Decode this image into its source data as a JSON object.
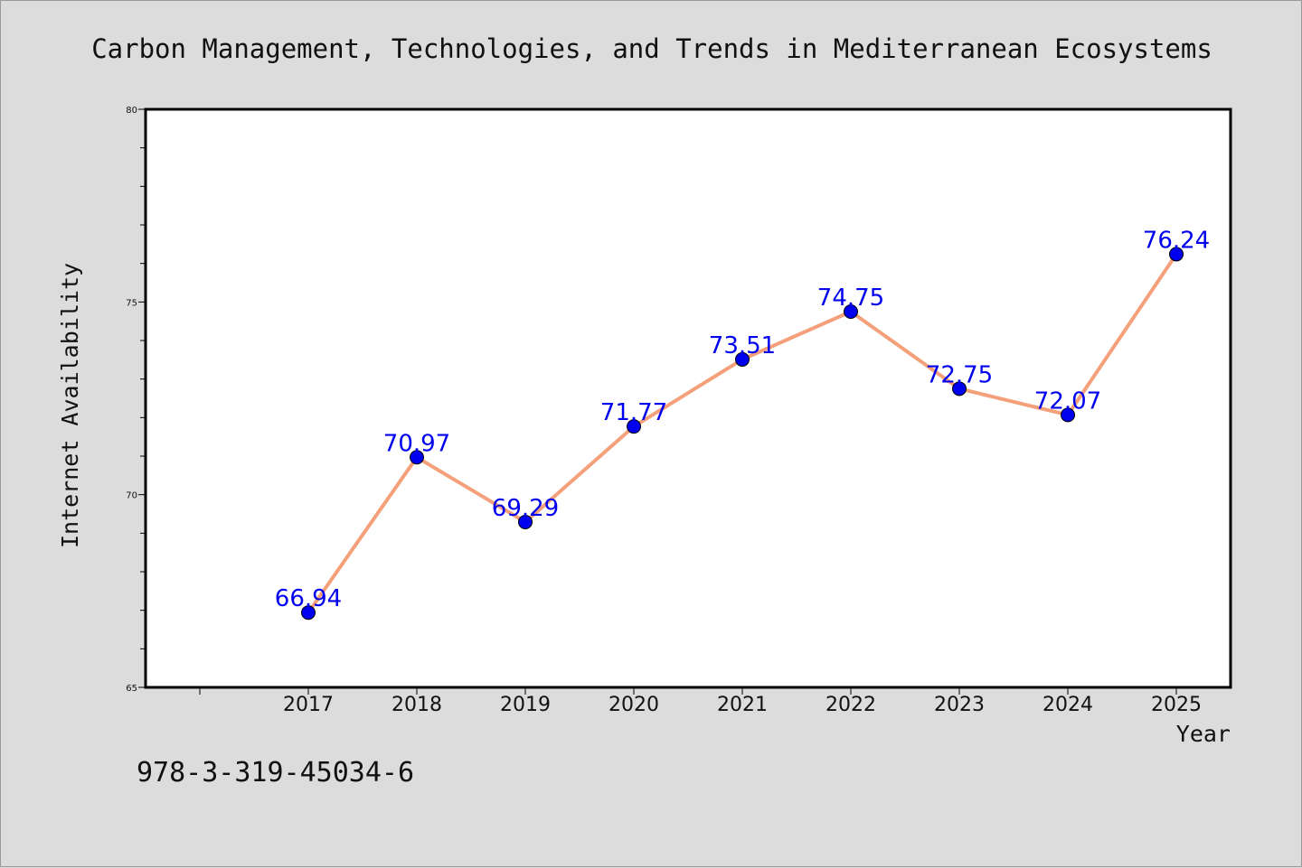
{
  "chart_data": {
    "type": "line",
    "title": "Carbon Management, Technologies, and Trends in Mediterranean Ecosystems",
    "xlabel": "Year",
    "ylabel": "Internet Availability",
    "categories": [
      "2017",
      "2018",
      "2019",
      "2020",
      "2021",
      "2022",
      "2023",
      "2024",
      "2025"
    ],
    "series": [
      {
        "values": [
          66.94,
          70.97,
          69.29,
          71.77,
          73.51,
          74.75,
          72.75,
          72.07,
          76.24
        ],
        "labels": [
          "66.94",
          "70.97",
          "69.29",
          "71.77",
          "73.51",
          "74.75",
          "72.75",
          "72.07",
          "76.24"
        ]
      }
    ],
    "ylim": [
      65,
      80
    ],
    "yticks": [
      "65",
      "70",
      "75",
      "80"
    ],
    "grid": false,
    "line_color": "#f4a07a",
    "marker_color": "#0000ee",
    "label_color": "#0000ee"
  },
  "footer": {
    "isbn": "978-3-319-45034-6"
  }
}
